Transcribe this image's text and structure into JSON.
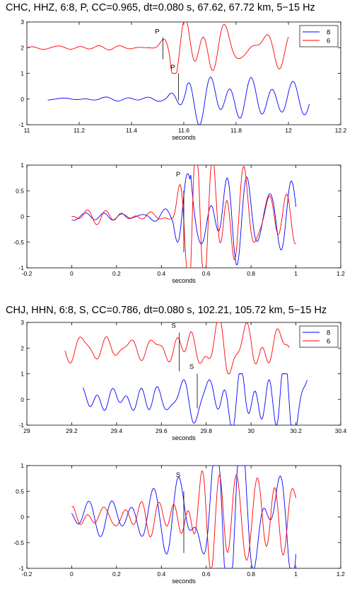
{
  "titles": [
    "CHC, HHZ, 6:8, P, CC=0.965, dt=0.080 s, 67.62, 67.72 km, 5−15 Hz",
    "CHJ, HHN, 6:8, S, CC=0.786, dt=0.080 s, 102.21, 105.72 km, 5−15 Hz"
  ],
  "colors": {
    "trace_8": "#0000ff",
    "trace_6": "#ff0000",
    "axis": "#000000",
    "marker": "#000000"
  },
  "chart_data": [
    {
      "type": "line",
      "xlim": [
        11,
        12.2
      ],
      "ylim": [
        -1,
        3
      ],
      "xticks": [
        "11",
        "11.2",
        "11.4",
        "11.6",
        "11.8",
        "12",
        "12.2"
      ],
      "yticks": [
        "-1",
        "0",
        "1",
        "2",
        "3"
      ],
      "xlabel": "seconds",
      "legend": {
        "placement": "top-right",
        "entries": [
          "8",
          "6"
        ]
      },
      "picks": [
        {
          "label": "P",
          "x": 11.52,
          "trace": "6"
        },
        {
          "label": "P",
          "x": 11.58,
          "trace": "8"
        }
      ],
      "series": [
        {
          "name": "8",
          "color": "blue",
          "offset": 0,
          "x_start": 11.08,
          "x_end": 12.08,
          "onset": 11.58
        },
        {
          "name": "6",
          "color": "red",
          "offset": 2,
          "x_start": 11.0,
          "x_end": 12.0,
          "onset": 11.52
        }
      ]
    },
    {
      "type": "line",
      "xlim": [
        -0.2,
        1.2
      ],
      "ylim": [
        -1,
        1
      ],
      "xticks": [
        "-0.2",
        "0",
        "0.2",
        "0.4",
        "0.6",
        "0.8",
        "1",
        "1.2"
      ],
      "yticks": [
        "-1",
        "-0.5",
        "0",
        "0.5",
        "1"
      ],
      "xlabel": "seconds",
      "picks": [
        {
          "label": "P",
          "x": 0.5
        }
      ],
      "series": [
        {
          "name": "8",
          "color": "blue",
          "x_start": 0.0,
          "x_end": 1.0,
          "onset": 0.5
        },
        {
          "name": "6",
          "color": "red",
          "x_start": 0.0,
          "x_end": 1.0,
          "onset": 0.5
        }
      ]
    },
    {
      "type": "line",
      "xlim": [
        29,
        30.4
      ],
      "ylim": [
        -1,
        3
      ],
      "xticks": [
        "29",
        "29.2",
        "29.4",
        "29.6",
        "29.8",
        "30",
        "30.2",
        "30.4"
      ],
      "yticks": [
        "-1",
        "0",
        "1",
        "2",
        "3"
      ],
      "xlabel": "seconds",
      "legend": {
        "placement": "top-right",
        "entries": [
          "8",
          "6"
        ]
      },
      "picks": [
        {
          "label": "S",
          "x": 29.68,
          "trace": "6"
        },
        {
          "label": "S",
          "x": 29.76,
          "trace": "8"
        }
      ],
      "series": [
        {
          "name": "8",
          "color": "blue",
          "offset": 0,
          "x_start": 29.25,
          "x_end": 30.25,
          "onset": 29.76
        },
        {
          "name": "6",
          "color": "red",
          "offset": 2,
          "x_start": 29.17,
          "x_end": 30.17,
          "onset": 29.68
        }
      ]
    },
    {
      "type": "line",
      "xlim": [
        -0.2,
        1.2
      ],
      "ylim": [
        -1,
        1
      ],
      "xticks": [
        "-0.2",
        "0",
        "0.2",
        "0.4",
        "0.6",
        "0.8",
        "1",
        "1.2"
      ],
      "yticks": [
        "-1",
        "-0.5",
        "0",
        "0.5",
        "1"
      ],
      "xlabel": "seconds",
      "picks": [
        {
          "label": "S",
          "x": 0.5
        }
      ],
      "series": [
        {
          "name": "8",
          "color": "blue",
          "x_start": 0.0,
          "x_end": 1.0,
          "onset": 0.5
        },
        {
          "name": "6",
          "color": "red",
          "x_start": 0.0,
          "x_end": 1.0,
          "onset": 0.5
        }
      ]
    }
  ]
}
